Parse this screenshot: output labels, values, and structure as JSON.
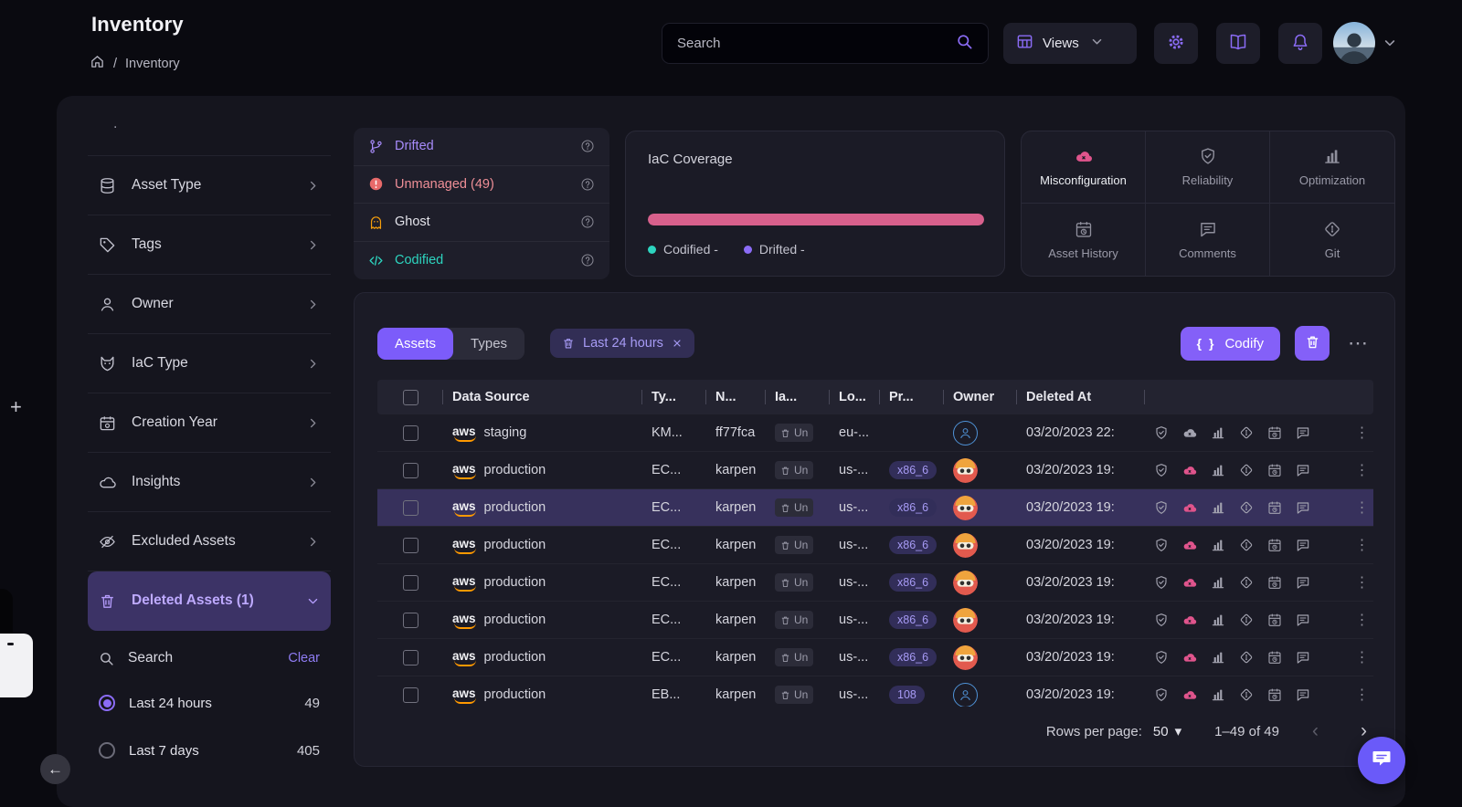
{
  "header": {
    "title": "Inventory",
    "breadcrumb_current": "Inventory",
    "search_placeholder": "Search",
    "views_label": "Views"
  },
  "icons": {
    "breadcrumb_sep": "/",
    "kebab": "⋮",
    "more": "⋯",
    "caret_down": "▾",
    "pager_prev": "‹",
    "pager_next": "›",
    "plus": "+",
    "back": "←"
  },
  "sidebar": {
    "top_fragment": ".",
    "items": [
      {
        "label": "Asset Type",
        "icon": "database"
      },
      {
        "label": "Tags",
        "icon": "tag"
      },
      {
        "label": "Owner",
        "icon": "person"
      },
      {
        "label": "IaC Type",
        "icon": "iac"
      },
      {
        "label": "Creation Year",
        "icon": "calendar"
      },
      {
        "label": "Insights",
        "icon": "cloud"
      },
      {
        "label": "Excluded Assets",
        "icon": "eye-off"
      },
      {
        "label": "Deleted Assets (1)",
        "icon": "trash",
        "active": true,
        "expanded": true
      }
    ],
    "search_label": "Search",
    "clear_label": "Clear",
    "time_filters": [
      {
        "label": "Last 24 hours",
        "count": "49",
        "selected": true
      },
      {
        "label": "Last 7 days",
        "count": "405",
        "selected": false
      }
    ]
  },
  "status_summary": {
    "items": [
      {
        "label": "Drifted",
        "icon": "branch",
        "color": "#a78bfa"
      },
      {
        "label": "Unmanaged (49)",
        "icon": "alert",
        "color": "#e86a6a",
        "label_color": "#ef8f97"
      },
      {
        "label": "Ghost",
        "icon": "ghost",
        "color": "#f59e0b",
        "label_color": "#e3e3ea"
      },
      {
        "label": "Codified",
        "icon": "code",
        "color": "#2dd4bf"
      }
    ]
  },
  "coverage": {
    "title": "IaC Coverage",
    "bar_percent": 100,
    "bar_color": "#d8608c",
    "legend": [
      {
        "label": "Codified -",
        "color": "#2dd4bf"
      },
      {
        "label": "Drifted -",
        "color": "#8b6cf6"
      }
    ]
  },
  "insight_tabs": [
    {
      "label": "Misconfiguration",
      "icon": "cloud-x",
      "active": true,
      "icon_color": "#e0548c"
    },
    {
      "label": "Reliability",
      "icon": "shield"
    },
    {
      "label": "Optimization",
      "icon": "chart"
    },
    {
      "label": "Asset History",
      "icon": "history"
    },
    {
      "label": "Comments",
      "icon": "comment"
    },
    {
      "label": "Git",
      "icon": "git"
    }
  ],
  "table": {
    "tabs": [
      {
        "label": "Assets",
        "active": true
      },
      {
        "label": "Types",
        "active": false
      }
    ],
    "filter_chip": {
      "label": "Last 24 hours"
    },
    "codify_braces": "{ }",
    "codify_label": "Codify",
    "columns": [
      "Data Source",
      "Ty...",
      "N...",
      "Ia...",
      "Lo...",
      "Pr...",
      "Owner",
      "Deleted At"
    ],
    "rows": [
      {
        "source": "aws",
        "env": "staging",
        "type": "KM...",
        "name": "ff77fca",
        "iac_badge": "Un",
        "location": "eu-...",
        "processor": "",
        "owner": "person",
        "deleted_at": "03/20/2023 22:",
        "misconfig": false,
        "selected": false
      },
      {
        "source": "aws",
        "env": "production",
        "type": "EC...",
        "name": "karpen",
        "iac_badge": "Un",
        "location": "us-...",
        "processor": "x86_6",
        "owner": "robot",
        "deleted_at": "03/20/2023 19:",
        "misconfig": true,
        "selected": false
      },
      {
        "source": "aws",
        "env": "production",
        "type": "EC...",
        "name": "karpen",
        "iac_badge": "Un",
        "location": "us-...",
        "processor": "x86_6",
        "owner": "robot",
        "deleted_at": "03/20/2023 19:",
        "misconfig": true,
        "selected": true
      },
      {
        "source": "aws",
        "env": "production",
        "type": "EC...",
        "name": "karpen",
        "iac_badge": "Un",
        "location": "us-...",
        "processor": "x86_6",
        "owner": "robot",
        "deleted_at": "03/20/2023 19:",
        "misconfig": true,
        "selected": false
      },
      {
        "source": "aws",
        "env": "production",
        "type": "EC...",
        "name": "karpen",
        "iac_badge": "Un",
        "location": "us-...",
        "processor": "x86_6",
        "owner": "robot",
        "deleted_at": "03/20/2023 19:",
        "misconfig": true,
        "selected": false
      },
      {
        "source": "aws",
        "env": "production",
        "type": "EC...",
        "name": "karpen",
        "iac_badge": "Un",
        "location": "us-...",
        "processor": "x86_6",
        "owner": "robot",
        "deleted_at": "03/20/2023 19:",
        "misconfig": true,
        "selected": false
      },
      {
        "source": "aws",
        "env": "production",
        "type": "EC...",
        "name": "karpen",
        "iac_badge": "Un",
        "location": "us-...",
        "processor": "x86_6",
        "owner": "robot",
        "deleted_at": "03/20/2023 19:",
        "misconfig": true,
        "selected": false
      },
      {
        "source": "aws",
        "env": "production",
        "type": "EB...",
        "name": "karpen",
        "iac_badge": "Un",
        "location": "us-...",
        "processor": "108",
        "owner": "person",
        "deleted_at": "03/20/2023 19:",
        "misconfig": true,
        "selected": false
      }
    ],
    "footer": {
      "rows_per_page_label": "Rows per page:",
      "rows_per_page_value": "50",
      "range": "1–49 of 49"
    }
  }
}
